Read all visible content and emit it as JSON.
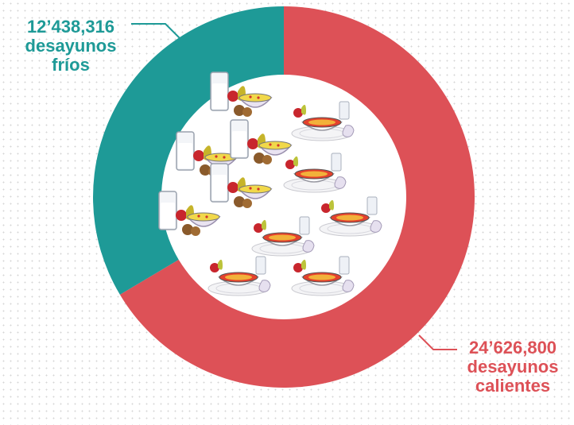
{
  "chart_data": {
    "type": "pie",
    "title": "",
    "series": [
      {
        "name": "desayunos calientes",
        "value": 24626800,
        "value_label": "24’626,800",
        "label_lines": [
          "desayunos",
          "calientes"
        ],
        "color": "#dd5157"
      },
      {
        "name": "desayunos fríos",
        "value": 12438316,
        "value_label": "12’438,316",
        "label_lines": [
          "desayunos",
          "fríos"
        ],
        "color": "#1e9a97"
      }
    ],
    "legend": "none",
    "center_image": "breakfast-illustration"
  }
}
